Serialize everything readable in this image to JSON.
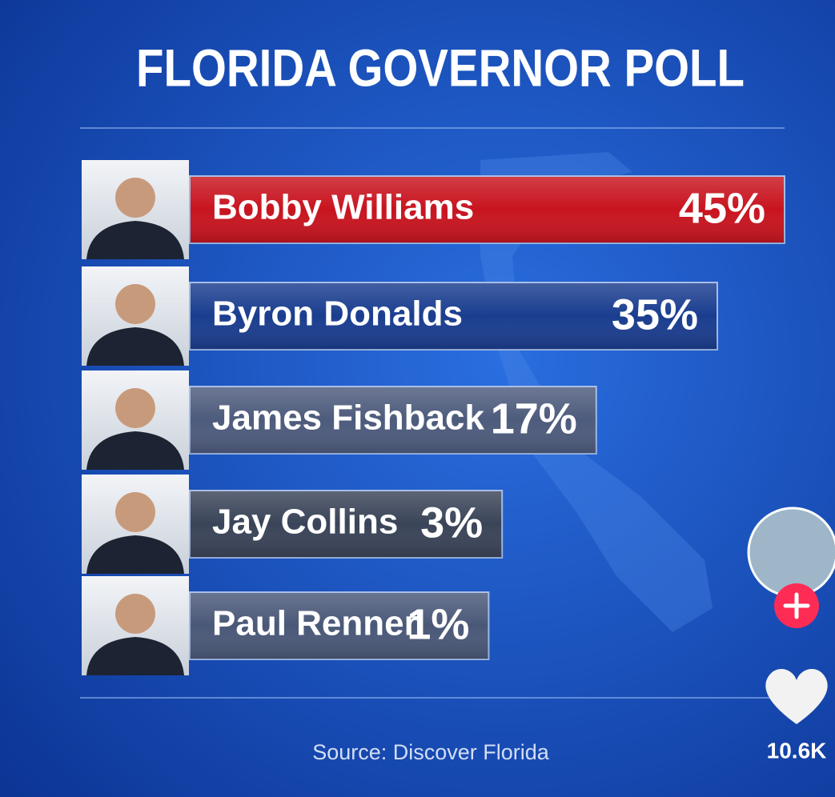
{
  "chart_data": {
    "type": "bar",
    "orientation": "horizontal",
    "title": "FLORIDA GOVERNOR POLL",
    "categories": [
      "Bobby Williams",
      "Byron Donalds",
      "James Fishback",
      "Jay Collins",
      "Paul Renner"
    ],
    "values": [
      45,
      35,
      17,
      3,
      1
    ],
    "value_labels": [
      "45%",
      "35%",
      "17%",
      "3%",
      "1%"
    ],
    "colors": [
      "#c8141f",
      "#1a3d8f",
      "#4d5b7c",
      "#3a4458",
      "#4a5878"
    ],
    "source": "Source: Discover Florida"
  },
  "ui": {
    "like_count": "10.6K"
  }
}
